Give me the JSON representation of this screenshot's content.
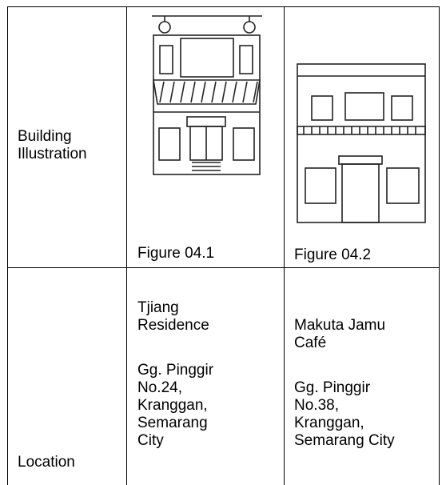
{
  "table": {
    "rows": [
      {
        "header": "Building Illustration",
        "cells": [
          {
            "caption": "Figure 04.1"
          },
          {
            "caption": "Figure 04.2"
          }
        ]
      },
      {
        "header": "Location",
        "cells": [
          {
            "name": "Tjiang Residence",
            "address": "Gg. Pinggir No.24, Kranggan, Semarang City"
          },
          {
            "name": "Makuta Jamu Café",
            "address": "Gg. Pinggir No.38, Kranggan, Semarang City"
          }
        ]
      }
    ]
  }
}
